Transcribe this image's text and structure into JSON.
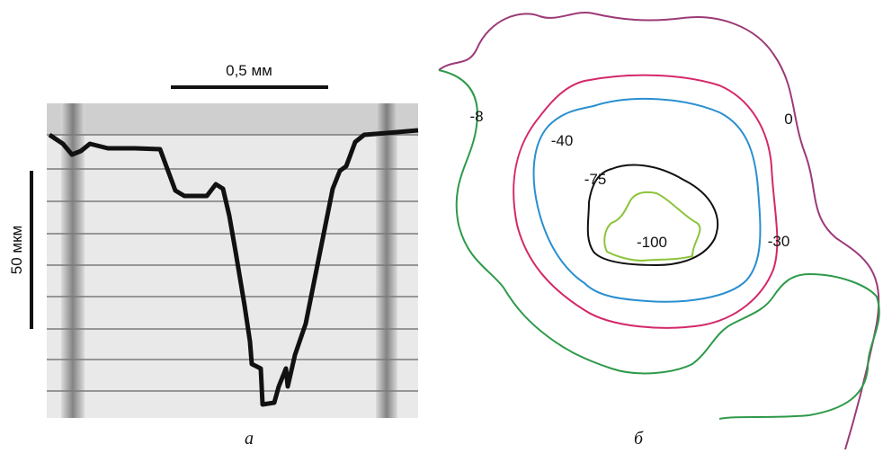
{
  "panel_a": {
    "label": "а",
    "scale_x": "0,5 мм",
    "scale_y": "50 мкм"
  },
  "panel_b": {
    "label": "б",
    "contours": [
      "-8",
      "0",
      "-40",
      "-75",
      "-100",
      "-30"
    ]
  }
}
